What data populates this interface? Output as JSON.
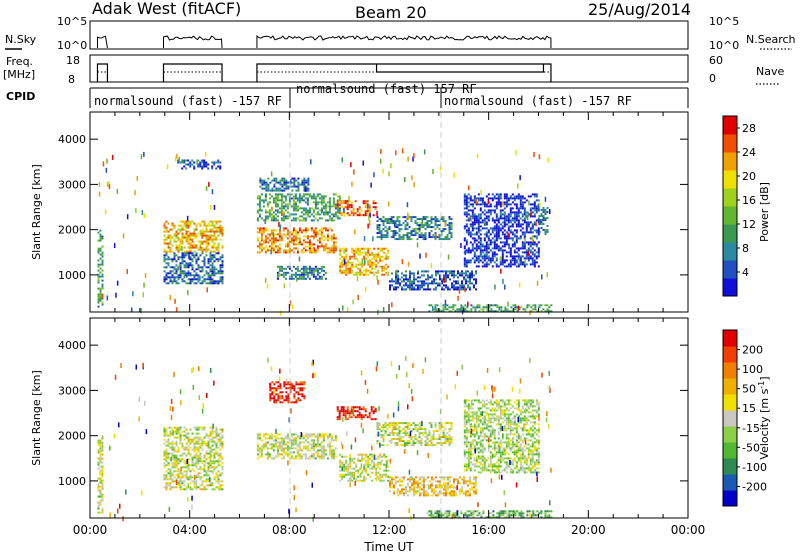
{
  "header": {
    "station": "Adak West (fitACF)",
    "beam": "Beam 20",
    "date": "25/Aug/2014"
  },
  "strips": {
    "nsky": {
      "label": "N.Sky",
      "right_label": "N.Search",
      "ticks_left": [
        "10^5",
        "10^0"
      ],
      "ticks_right": [
        "10^5",
        "10^0"
      ]
    },
    "freq": {
      "label": "Freq.",
      "unit": "[MHz]",
      "right_label": "Nave",
      "ticks_left": [
        "18",
        "8"
      ],
      "ticks_right": [
        "60",
        "0"
      ]
    },
    "cpid": {
      "label": "CPID",
      "segments": [
        {
          "text": "normalsound (fast) -157 RF"
        },
        {
          "text": "normalsound (fast) 157 RF"
        },
        {
          "text": "normalsound (fast) -157 RF"
        }
      ]
    }
  },
  "chart_data": [
    {
      "type": "heatmap",
      "panel": "power",
      "xlabel": "",
      "ylabel": "Slant Range [km]",
      "ytick_labels": [
        "1000",
        "2000",
        "3000",
        "4000"
      ],
      "xlim_hours": [
        0,
        24
      ],
      "ylim_km": [
        180,
        4600
      ],
      "colorbar": {
        "label": "Power [dB]",
        "tick_labels": [
          "4",
          "8",
          "12",
          "16",
          "20",
          "24",
          "28"
        ],
        "range": [
          0,
          30
        ],
        "colors": [
          "#1010d8",
          "#2050c0",
          "#2a8aa0",
          "#3a9a50",
          "#60b830",
          "#a0d020",
          "#f0e000",
          "#f0a000",
          "#f05000",
          "#e00000"
        ]
      },
      "regions": [
        {
          "t": [
            0.3,
            0.5
          ],
          "r": [
            300,
            2000
          ],
          "level": 0.35
        },
        {
          "t": [
            2.95,
            5.3
          ],
          "r": [
            1500,
            2200
          ],
          "level": 0.7
        },
        {
          "t": [
            2.95,
            5.3
          ],
          "r": [
            800,
            1500
          ],
          "level": 0.2
        },
        {
          "t": [
            3.5,
            5.3
          ],
          "r": [
            3350,
            3550
          ],
          "level": 0.15
        },
        {
          "t": [
            6.7,
            9.9
          ],
          "r": [
            1500,
            2050
          ],
          "level": 0.75
        },
        {
          "t": [
            6.7,
            10.0
          ],
          "r": [
            2200,
            2800
          ],
          "level": 0.35
        },
        {
          "t": [
            6.8,
            8.8
          ],
          "r": [
            2850,
            3150
          ],
          "level": 0.2
        },
        {
          "t": [
            9.9,
            11.5
          ],
          "r": [
            2300,
            2650
          ],
          "level": 0.85
        },
        {
          "t": [
            10.0,
            12.0
          ],
          "r": [
            1000,
            1600
          ],
          "level": 0.7
        },
        {
          "t": [
            11.5,
            14.5
          ],
          "r": [
            1800,
            2300
          ],
          "level": 0.25
        },
        {
          "t": [
            7.5,
            9.5
          ],
          "r": [
            900,
            1200
          ],
          "level": 0.25
        },
        {
          "t": [
            15.0,
            18.0
          ],
          "r": [
            1200,
            2800
          ],
          "level": 0.08
        },
        {
          "t": [
            18.0,
            18.4
          ],
          "r": [
            1900,
            2500
          ],
          "level": 0.3
        },
        {
          "t": [
            12.0,
            15.5
          ],
          "r": [
            700,
            1100
          ],
          "level": 0.15
        },
        {
          "t": [
            13.5,
            18.5
          ],
          "r": [
            200,
            350
          ],
          "level": 0.35
        }
      ]
    },
    {
      "type": "heatmap",
      "panel": "velocity",
      "xlabel": "Time UT",
      "ylabel": "Slant Range [km]",
      "ytick_labels": [
        "1000",
        "2000",
        "3000",
        "4000"
      ],
      "xtick_labels": [
        "00:00",
        "04:00",
        "08:00",
        "12:00",
        "16:00",
        "20:00",
        "00:00"
      ],
      "xlim_hours": [
        0,
        24
      ],
      "ylim_km": [
        180,
        4600
      ],
      "colorbar": {
        "label": "Velocity [m s-1]",
        "tick_labels": [
          "200",
          "100",
          "50",
          "15",
          "-15",
          "-50",
          "-100",
          "-200"
        ],
        "colors": [
          "#0000c8",
          "#1a5ab4",
          "#2e8a50",
          "#50b830",
          "#8cd048",
          "#c8c8c0",
          "#f0e000",
          "#f0b000",
          "#f08000",
          "#f04000",
          "#e00000"
        ]
      },
      "regions": [
        {
          "t": [
            0.3,
            0.5
          ],
          "r": [
            300,
            2000
          ],
          "level": 0.5
        },
        {
          "t": [
            2.95,
            5.3
          ],
          "r": [
            1500,
            2200
          ],
          "level": 0.5
        },
        {
          "t": [
            2.95,
            5.3
          ],
          "r": [
            800,
            1500
          ],
          "level": 0.5
        },
        {
          "t": [
            6.7,
            9.9
          ],
          "r": [
            1500,
            2050
          ],
          "level": 0.5
        },
        {
          "t": [
            10.0,
            12.0
          ],
          "r": [
            1000,
            1600
          ],
          "level": 0.5
        },
        {
          "t": [
            7.2,
            8.6
          ],
          "r": [
            2750,
            3200
          ],
          "level": 0.95
        },
        {
          "t": [
            9.9,
            11.5
          ],
          "r": [
            2350,
            2650
          ],
          "level": 0.92
        },
        {
          "t": [
            11.5,
            14.5
          ],
          "r": [
            1800,
            2300
          ],
          "level": 0.5
        },
        {
          "t": [
            15.0,
            18.0
          ],
          "r": [
            1200,
            2800
          ],
          "level": 0.45
        },
        {
          "t": [
            12.0,
            15.5
          ],
          "r": [
            700,
            1100
          ],
          "level": 0.62
        },
        {
          "t": [
            13.5,
            18.5
          ],
          "r": [
            200,
            350
          ],
          "level": 0.35
        }
      ]
    }
  ]
}
